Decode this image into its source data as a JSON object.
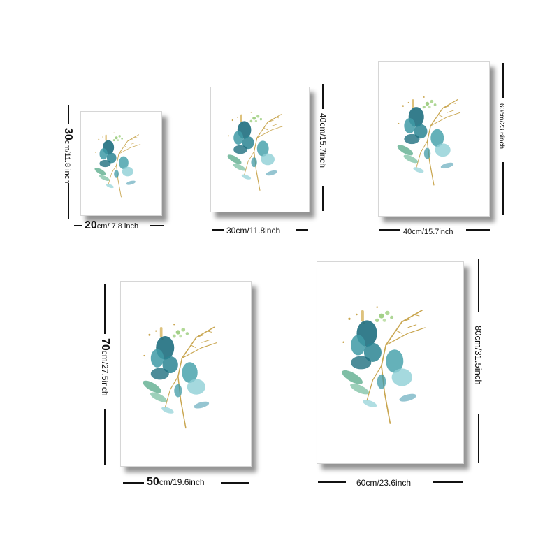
{
  "colors": {
    "teal_dark": "#1f6f80",
    "teal_mid": "#3f9aa6",
    "teal_light": "#8fd0d6",
    "leaf_green": "#5fae8e",
    "gold": "#c9a650",
    "green_dot": "#8cc46a"
  },
  "posters": [
    {
      "name": "poster-20x30",
      "width": {
        "num": "20",
        "unit": "cm/ 7.8 inch"
      },
      "height": {
        "num": "30",
        "unit": "cm/11.8 inch"
      }
    },
    {
      "name": "poster-30x40",
      "width": {
        "text": "30cm/11.8inch"
      },
      "height": {
        "text": "40cm/15.7inch"
      }
    },
    {
      "name": "poster-40x60",
      "width": {
        "text": "40cm/15.7inch"
      },
      "height": {
        "text": "60cm/23.6inch"
      }
    },
    {
      "name": "poster-50x70",
      "width": {
        "num": "50",
        "unit": "cm/19.6inch"
      },
      "height": {
        "num": "70",
        "unit": "cm/27.5inch"
      }
    },
    {
      "name": "poster-60x80",
      "width": {
        "text": "60cm/23.6inch"
      },
      "height": {
        "text": "80cm/31.5inch"
      }
    }
  ]
}
